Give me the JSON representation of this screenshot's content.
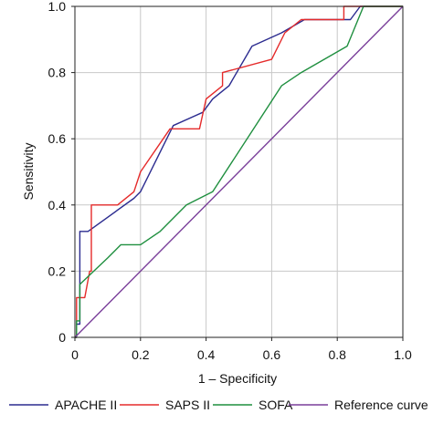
{
  "chart_data": {
    "type": "line",
    "title": "",
    "xlabel": "1 – Specificity",
    "ylabel": "Sensitivity",
    "xlim": [
      0,
      1
    ],
    "ylim": [
      0,
      1
    ],
    "x_ticks": [
      "0",
      "0.2",
      "0.4",
      "0.6",
      "0.8",
      "1.0"
    ],
    "y_ticks": [
      "0",
      "0.2",
      "0.4",
      "0.6",
      "0.8",
      "1.0"
    ],
    "grid": true,
    "legend_position": "bottom",
    "series": [
      {
        "name": "APACHE II",
        "color": "#2b2b8f",
        "x": [
          0,
          0.005,
          0.005,
          0.015,
          0.015,
          0.04,
          0.04,
          0.18,
          0.2,
          0.3,
          0.39,
          0.42,
          0.47,
          0.54,
          0.63,
          0.7,
          0.84,
          0.84,
          0.87,
          1.0
        ],
        "y": [
          0,
          0,
          0.04,
          0.04,
          0.32,
          0.32,
          0.32,
          0.42,
          0.44,
          0.64,
          0.68,
          0.72,
          0.76,
          0.88,
          0.92,
          0.96,
          0.96,
          0.96,
          1.0,
          1.0
        ]
      },
      {
        "name": "SAPS II",
        "color": "#e52b2b",
        "x": [
          0,
          0.005,
          0.005,
          0.03,
          0.03,
          0.045,
          0.045,
          0.05,
          0.05,
          0.13,
          0.13,
          0.18,
          0.2,
          0.29,
          0.38,
          0.38,
          0.4,
          0.45,
          0.45,
          0.6,
          0.62,
          0.62,
          0.64,
          0.69,
          0.82,
          0.82,
          0.85,
          1.0
        ],
        "y": [
          0,
          0,
          0.12,
          0.12,
          0.12,
          0.2,
          0.2,
          0.2,
          0.4,
          0.4,
          0.4,
          0.44,
          0.5,
          0.63,
          0.63,
          0.63,
          0.72,
          0.76,
          0.8,
          0.84,
          0.88,
          0.88,
          0.92,
          0.96,
          0.96,
          1.0,
          1.0,
          1.0
        ]
      },
      {
        "name": "SOFA",
        "color": "#1f8f3f",
        "x": [
          0,
          0.005,
          0.005,
          0.015,
          0.015,
          0.1,
          0.14,
          0.2,
          0.26,
          0.3,
          0.34,
          0.42,
          0.63,
          0.69,
          0.83,
          0.88,
          1.0
        ],
        "y": [
          0,
          0,
          0.05,
          0.05,
          0.16,
          0.24,
          0.28,
          0.28,
          0.32,
          0.36,
          0.4,
          0.44,
          0.76,
          0.8,
          0.88,
          1.0,
          1.0
        ]
      },
      {
        "name": "Reference curve",
        "color": "#7a3f9a",
        "x": [
          0,
          1.0
        ],
        "y": [
          0,
          1.0
        ]
      }
    ]
  }
}
